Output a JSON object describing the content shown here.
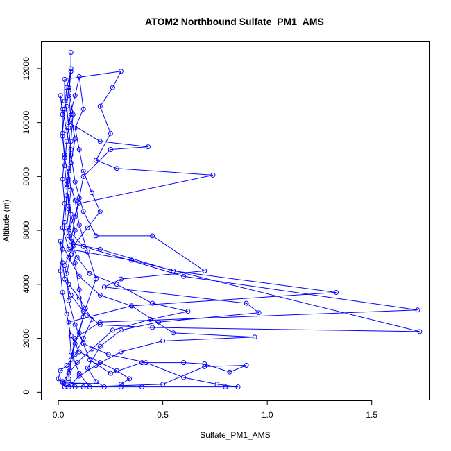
{
  "chart_data": {
    "type": "line",
    "title": "ATOM2 Northbound Sulfate_PM1_AMS",
    "xlabel": "Sulfate_PM1_AMS",
    "ylabel": "Altitude (m)",
    "xlim": [
      -0.08,
      1.78
    ],
    "ylim": [
      -300,
      13000
    ],
    "xticks": [
      0.0,
      0.5,
      1.0,
      1.5
    ],
    "xtick_labels": [
      "0.0",
      "0.5",
      "1.0",
      "1.5"
    ],
    "yticks": [
      0,
      2000,
      4000,
      6000,
      8000,
      10000,
      12000
    ],
    "ytick_labels": [
      "0",
      "2000",
      "4000",
      "6000",
      "8000",
      "10000",
      "12000"
    ],
    "grid": false,
    "marker": "open-circle",
    "colors": {
      "series": "#0000ff",
      "axes": "#000000",
      "background": "#ffffff"
    },
    "series": [
      {
        "name": "",
        "points": [
          [
            0.06,
            12600
          ],
          [
            0.06,
            12000
          ],
          [
            0.05,
            11300
          ],
          [
            0.04,
            10600
          ],
          [
            0.05,
            9800
          ],
          [
            0.06,
            9000
          ],
          [
            0.05,
            8200
          ],
          [
            0.06,
            7500
          ],
          [
            0.05,
            6800
          ],
          [
            0.04,
            6100
          ],
          [
            0.07,
            5500
          ],
          [
            0.2,
            5300
          ],
          [
            0.55,
            4500
          ],
          [
            1.33,
            3700
          ],
          [
            0.35,
            3200
          ],
          [
            0.05,
            2600
          ],
          [
            0.06,
            1500
          ],
          [
            0.1,
            700
          ],
          [
            0.15,
            200
          ],
          [
            0.3,
            200
          ],
          [
            0.4,
            200
          ],
          [
            0.05,
            200
          ],
          [
            0.03,
            200
          ],
          [
            0.05,
            900
          ],
          [
            0.08,
            1800
          ],
          [
            0.12,
            2800
          ],
          [
            0.1,
            3800
          ],
          [
            0.08,
            4800
          ],
          [
            0.06,
            5600
          ],
          [
            0.08,
            6500
          ],
          [
            0.1,
            7200
          ],
          [
            0.12,
            8000
          ],
          [
            0.25,
            9000
          ],
          [
            0.43,
            9100
          ],
          [
            0.2,
            9300
          ],
          [
            0.05,
            10000
          ],
          [
            0.03,
            10800
          ],
          [
            0.03,
            11600
          ],
          [
            0.3,
            11900
          ],
          [
            0.26,
            11300
          ],
          [
            0.2,
            10600
          ],
          [
            0.25,
            9600
          ],
          [
            0.18,
            8600
          ],
          [
            0.28,
            8300
          ],
          [
            0.74,
            8050
          ],
          [
            0.1,
            7000
          ],
          [
            0.05,
            6000
          ],
          [
            0.12,
            5400
          ],
          [
            0.6,
            4300
          ],
          [
            1.72,
            3050
          ],
          [
            0.2,
            2600
          ],
          [
            0.08,
            2000
          ],
          [
            0.06,
            1200
          ],
          [
            0.05,
            500
          ],
          [
            0.08,
            200
          ],
          [
            0.12,
            200
          ],
          [
            0.5,
            300
          ],
          [
            0.7,
            950
          ],
          [
            0.9,
            1000
          ],
          [
            0.82,
            750
          ],
          [
            0.7,
            1050
          ],
          [
            0.6,
            1100
          ],
          [
            0.4,
            1100
          ],
          [
            0.25,
            700
          ],
          [
            0.15,
            1200
          ],
          [
            0.1,
            2200
          ],
          [
            0.13,
            3100
          ],
          [
            0.18,
            4200
          ],
          [
            0.14,
            5200
          ],
          [
            0.1,
            6200
          ],
          [
            0.08,
            7100
          ],
          [
            0.05,
            7900
          ],
          [
            0.03,
            8700
          ],
          [
            0.02,
            9500
          ],
          [
            0.02,
            10300
          ],
          [
            0.01,
            11000
          ],
          [
            0.02,
            10500
          ],
          [
            0.04,
            9700
          ],
          [
            0.06,
            8800
          ],
          [
            0.08,
            7800
          ],
          [
            0.12,
            6700
          ],
          [
            0.18,
            5800
          ],
          [
            0.45,
            5800
          ],
          [
            0.7,
            4500
          ],
          [
            0.3,
            4200
          ],
          [
            0.22,
            3900
          ],
          [
            0.9,
            3300
          ],
          [
            0.96,
            2950
          ],
          [
            0.48,
            2600
          ],
          [
            0.3,
            2300
          ],
          [
            0.2,
            1700
          ],
          [
            0.14,
            900
          ],
          [
            0.18,
            400
          ],
          [
            0.22,
            200
          ],
          [
            0.8,
            200
          ],
          [
            0.86,
            200
          ],
          [
            0.76,
            300
          ],
          [
            0.6,
            550
          ],
          [
            0.42,
            1100
          ],
          [
            0.24,
            1400
          ],
          [
            0.12,
            1800
          ],
          [
            0.08,
            2500
          ],
          [
            0.05,
            3400
          ],
          [
            0.04,
            4400
          ],
          [
            0.06,
            5100
          ],
          [
            0.08,
            6000
          ],
          [
            0.05,
            6900
          ],
          [
            0.04,
            7700
          ],
          [
            0.06,
            8500
          ],
          [
            0.08,
            9400
          ],
          [
            0.06,
            10200
          ],
          [
            0.05,
            11000
          ],
          [
            0.06,
            11900
          ],
          [
            0.04,
            11300
          ],
          [
            0.03,
            10500
          ],
          [
            0.02,
            9600
          ],
          [
            0.03,
            8800
          ],
          [
            0.02,
            7900
          ],
          [
            0.03,
            7000
          ],
          [
            0.02,
            6100
          ],
          [
            0.05,
            5300
          ],
          [
            0.35,
            4900
          ],
          [
            1.73,
            2250
          ],
          [
            0.45,
            2400
          ],
          [
            0.2,
            2500
          ],
          [
            0.12,
            3000
          ],
          [
            0.06,
            3600
          ],
          [
            0.03,
            4200
          ],
          [
            0.02,
            4800
          ],
          [
            0.01,
            5600
          ],
          [
            0.05,
            5000
          ],
          [
            0.1,
            4300
          ],
          [
            0.2,
            3600
          ],
          [
            0.35,
            3200
          ],
          [
            0.55,
            2200
          ],
          [
            0.94,
            2050
          ],
          [
            0.5,
            1900
          ],
          [
            0.3,
            1500
          ],
          [
            0.18,
            1000
          ],
          [
            0.1,
            600
          ],
          [
            0.06,
            300
          ],
          [
            0.03,
            200
          ],
          [
            0.02,
            400
          ],
          [
            0.0,
            500
          ],
          [
            0.01,
            800
          ],
          [
            0.04,
            1000
          ],
          [
            0.08,
            1400
          ],
          [
            0.12,
            2000
          ],
          [
            0.16,
            2700
          ],
          [
            0.1,
            3500
          ],
          [
            0.05,
            4000
          ],
          [
            0.03,
            4700
          ],
          [
            0.07,
            5400
          ],
          [
            0.14,
            6100
          ],
          [
            0.2,
            6700
          ],
          [
            0.16,
            7400
          ],
          [
            0.12,
            8200
          ],
          [
            0.1,
            9000
          ],
          [
            0.08,
            9800
          ],
          [
            0.12,
            10500
          ],
          [
            0.1,
            11700
          ],
          [
            0.08,
            11000
          ],
          [
            0.06,
            10400
          ],
          [
            0.04,
            9300
          ],
          [
            0.03,
            8400
          ],
          [
            0.04,
            7600
          ],
          [
            0.06,
            6600
          ],
          [
            0.05,
            5800
          ],
          [
            0.09,
            5000
          ],
          [
            0.15,
            4400
          ],
          [
            0.28,
            4000
          ],
          [
            0.45,
            3300
          ],
          [
            0.62,
            3000
          ],
          [
            0.44,
            2700
          ],
          [
            0.26,
            2300
          ],
          [
            0.16,
            1600
          ],
          [
            0.09,
            1100
          ],
          [
            0.05,
            700
          ],
          [
            0.02,
            350
          ],
          [
            0.3,
            300
          ],
          [
            0.34,
            500
          ],
          [
            0.28,
            800
          ],
          [
            0.2,
            1100
          ],
          [
            0.1,
            1500
          ],
          [
            0.06,
            2100
          ],
          [
            0.04,
            2900
          ],
          [
            0.02,
            3700
          ],
          [
            0.01,
            4500
          ],
          [
            0.02,
            5300
          ],
          [
            0.03,
            6300
          ],
          [
            0.04,
            7300
          ],
          [
            0.05,
            8300
          ],
          [
            0.06,
            9300
          ],
          [
            0.07,
            10300
          ],
          [
            0.05,
            11200
          ],
          [
            0.06,
            11900
          ]
        ]
      }
    ]
  }
}
